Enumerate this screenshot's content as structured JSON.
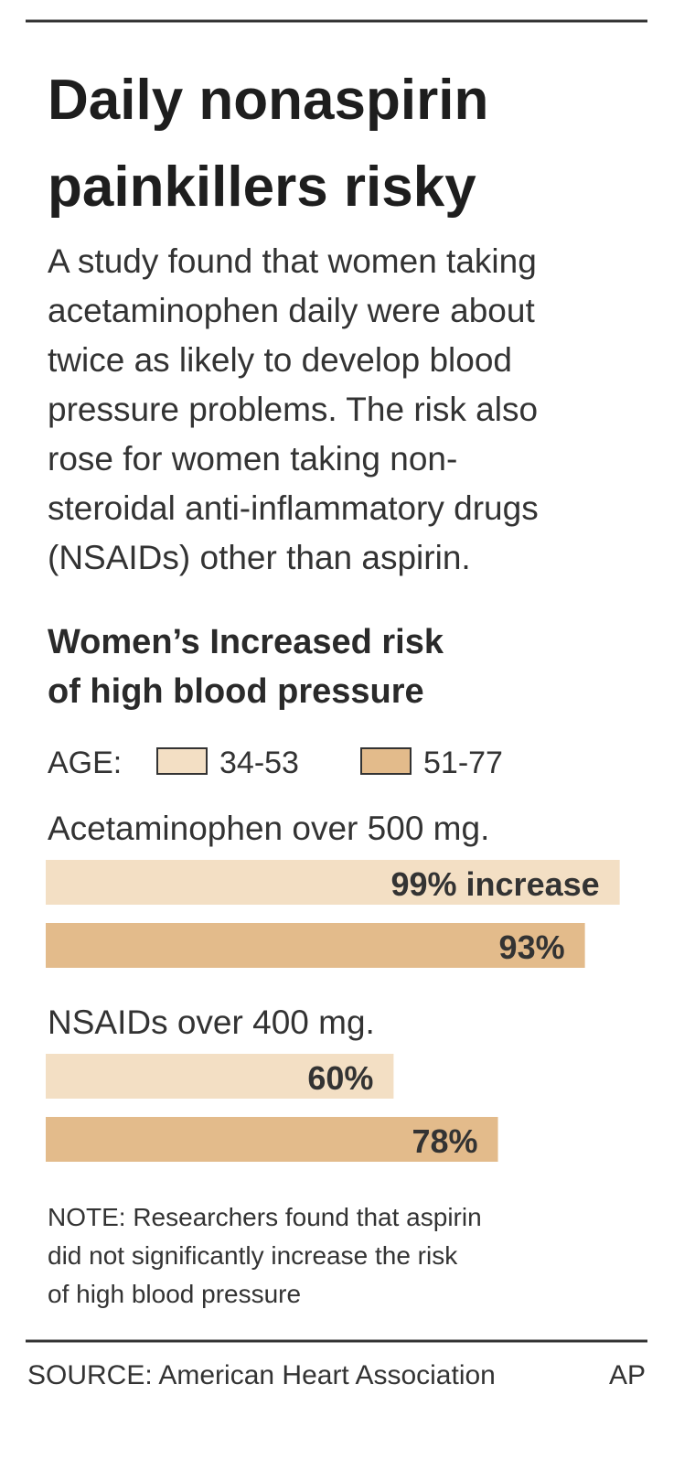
{
  "chart_data": {
    "type": "bar",
    "title_lines": [
      "Daily nonaspirin",
      "painkillers risky"
    ],
    "description_lines": [
      "A study found that women taking",
      "acetaminophen daily were about",
      "twice as likely to develop blood",
      "pressure problems. The risk also",
      "rose for women taking non-",
      "steroidal anti-inflammatory drugs",
      "(NSAIDs) other than aspirin."
    ],
    "subtitle_lines": [
      "Women’s Increased risk",
      "of high blood pressure"
    ],
    "legend_title": "AGE:",
    "categories": [
      "Acetaminophen over 500 mg.",
      "NSAIDs over 400 mg."
    ],
    "series": [
      {
        "name": "34-53",
        "color": "#f3dfc4",
        "values": [
          99,
          60
        ],
        "value_labels": [
          "99% increase",
          "60%"
        ]
      },
      {
        "name": "51-77",
        "color": "#e3bb8b",
        "values": [
          93,
          78
        ],
        "value_labels": [
          "93%",
          "78%"
        ]
      }
    ],
    "xlim": [
      0,
      100
    ],
    "note_lines": [
      "NOTE: Researchers found that aspirin",
      "did not significantly increase the risk",
      "of high blood pressure"
    ],
    "source": "SOURCE: American Heart Association",
    "credit": "AP"
  }
}
